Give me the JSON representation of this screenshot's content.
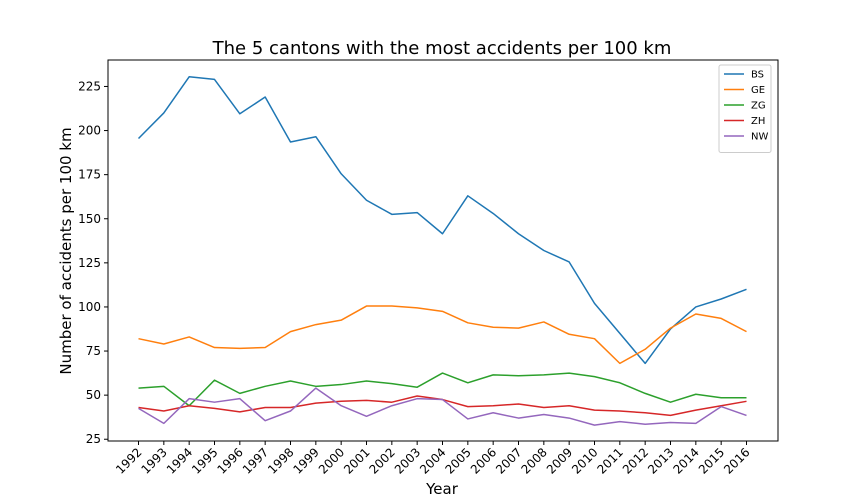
{
  "chart_data": {
    "type": "line",
    "title": "The 5 cantons with the most accidents per 100 km",
    "xlabel": "Year",
    "ylabel": "Number of accidents per 100 km",
    "x": [
      "1992",
      "1993",
      "1994",
      "1995",
      "1996",
      "1997",
      "1998",
      "1999",
      "2000",
      "2001",
      "2002",
      "2003",
      "2004",
      "2005",
      "2006",
      "2007",
      "2008",
      "2009",
      "2010",
      "2011",
      "2012",
      "2013",
      "2014",
      "2015",
      "2016"
    ],
    "ylim": [
      24,
      240
    ],
    "yticks": [
      25,
      50,
      75,
      100,
      125,
      150,
      175,
      200,
      225
    ],
    "grid": false,
    "legend_position": "top-right",
    "series": [
      {
        "name": "BS",
        "color": "#1f77b4",
        "values": [
          195.5,
          210,
          230.5,
          229,
          209.5,
          219,
          193.5,
          196.5,
          175.5,
          160.5,
          152.5,
          153.5,
          141.5,
          163,
          153,
          141.5,
          132,
          125.5,
          102,
          85,
          68,
          87.5,
          100,
          104.5,
          110
        ]
      },
      {
        "name": "GE",
        "color": "#ff7f0e",
        "values": [
          82,
          79,
          83,
          77,
          76.5,
          77,
          86,
          90,
          92.5,
          100.5,
          100.5,
          99.5,
          97.5,
          91,
          88.5,
          88,
          91.5,
          84.5,
          82,
          68,
          76,
          88,
          96,
          93.5,
          86
        ]
      },
      {
        "name": "ZG",
        "color": "#2ca02c",
        "values": [
          54,
          55,
          44,
          58.5,
          51,
          55,
          58,
          55,
          56,
          58,
          56.5,
          54.5,
          62.5,
          57,
          61.5,
          61,
          61.5,
          62.5,
          60.5,
          57,
          51,
          46,
          50.5,
          48.5,
          48.5
        ]
      },
      {
        "name": "ZH",
        "color": "#d62728",
        "values": [
          43,
          41,
          44,
          42.5,
          40.5,
          43,
          43,
          45.5,
          46.5,
          47,
          46,
          49.5,
          47.5,
          43.5,
          44,
          45,
          43,
          44,
          41.5,
          41,
          40,
          38.5,
          41.5,
          44,
          46.5
        ]
      },
      {
        "name": "NW",
        "color": "#9467bd",
        "values": [
          42.5,
          34,
          48,
          46,
          48,
          35.5,
          41,
          54,
          44,
          38,
          44,
          48,
          47.5,
          36.5,
          40,
          37,
          39,
          37,
          33,
          35,
          33.5,
          34.5,
          34,
          43.5,
          38.5
        ]
      }
    ]
  }
}
